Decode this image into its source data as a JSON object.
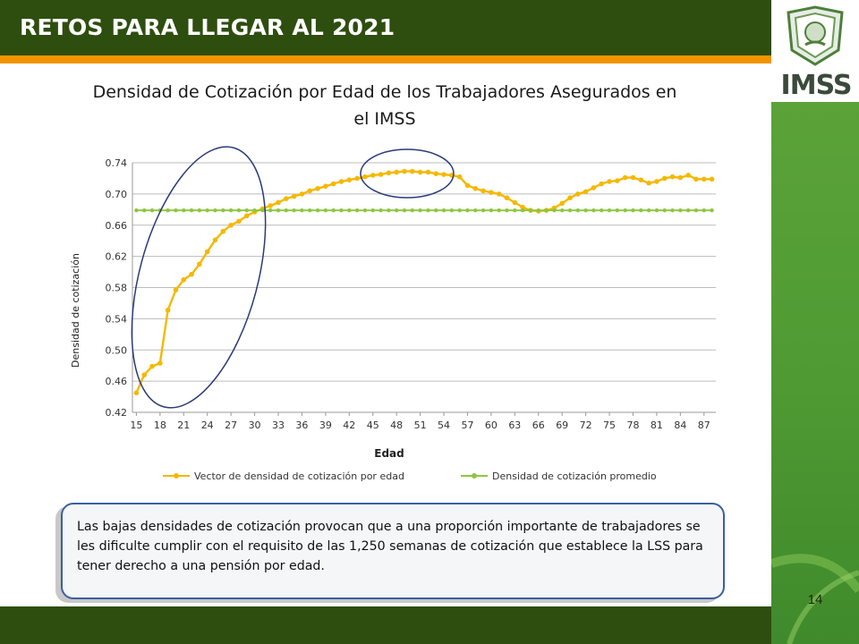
{
  "header": {
    "title": "RETOS PARA LLEGAR AL 2021"
  },
  "logo": {
    "text": "IMSS"
  },
  "page_number": "14",
  "colors": {
    "header_bg": "#2e4e0f",
    "accent_orange": "#f29400",
    "side_green": "#5fa63b",
    "series_orange": "#f5b800",
    "series_green": "#8dc63f",
    "ellipse": "#2b3a78"
  },
  "chart_data": {
    "type": "line",
    "title": "Densidad de Cotización por Edad de los Trabajadores Asegurados en el IMSS",
    "xlabel": "Edad",
    "ylabel": "Densidad de cotización",
    "ylim": [
      0.42,
      0.74
    ],
    "yticks": [
      "0.42",
      "0.46",
      "0.50",
      "0.54",
      "0.58",
      "0.62",
      "0.66",
      "0.70",
      "0.74"
    ],
    "xticks": [
      "15",
      "18",
      "21",
      "24",
      "27",
      "30",
      "33",
      "36",
      "39",
      "42",
      "45",
      "48",
      "51",
      "54",
      "57",
      "60",
      "63",
      "66",
      "69",
      "72",
      "75",
      "78",
      "81",
      "84",
      "87"
    ],
    "x": [
      15,
      16,
      17,
      18,
      19,
      20,
      21,
      22,
      23,
      24,
      25,
      26,
      27,
      28,
      29,
      30,
      31,
      32,
      33,
      34,
      35,
      36,
      37,
      38,
      39,
      40,
      41,
      42,
      43,
      44,
      45,
      46,
      47,
      48,
      49,
      50,
      51,
      52,
      53,
      54,
      55,
      56,
      57,
      58,
      59,
      60,
      61,
      62,
      63,
      64,
      65,
      66,
      67,
      68,
      69,
      70,
      71,
      72,
      73,
      74,
      75,
      76,
      77,
      78,
      79,
      80,
      81,
      82,
      83,
      84,
      85,
      86,
      87,
      88
    ],
    "grid": true,
    "legend_position": "bottom",
    "series": [
      {
        "name": "Vector de densidad de cotización por edad",
        "color": "#f5b800",
        "values": [
          0.445,
          0.468,
          0.479,
          0.483,
          0.551,
          0.577,
          0.59,
          0.597,
          0.61,
          0.626,
          0.641,
          0.652,
          0.66,
          0.665,
          0.672,
          0.677,
          0.681,
          0.685,
          0.689,
          0.694,
          0.697,
          0.7,
          0.704,
          0.707,
          0.71,
          0.713,
          0.716,
          0.718,
          0.72,
          0.722,
          0.724,
          0.725,
          0.727,
          0.728,
          0.729,
          0.729,
          0.728,
          0.728,
          0.726,
          0.725,
          0.724,
          0.722,
          0.711,
          0.707,
          0.704,
          0.702,
          0.7,
          0.695,
          0.689,
          0.683,
          0.679,
          0.678,
          0.679,
          0.682,
          0.688,
          0.695,
          0.7,
          0.703,
          0.708,
          0.713,
          0.716,
          0.717,
          0.721,
          0.721,
          0.718,
          0.714,
          0.716,
          0.72,
          0.722,
          0.721,
          0.724,
          0.719,
          0.719,
          0.719
        ]
      },
      {
        "name": "Densidad de cotización promedio",
        "color": "#8dc63f",
        "values": [
          0.679,
          0.679,
          0.679,
          0.679,
          0.679,
          0.679,
          0.679,
          0.679,
          0.679,
          0.679,
          0.679,
          0.679,
          0.679,
          0.679,
          0.679,
          0.679,
          0.679,
          0.679,
          0.679,
          0.679,
          0.679,
          0.679,
          0.679,
          0.679,
          0.679,
          0.679,
          0.679,
          0.679,
          0.679,
          0.679,
          0.679,
          0.679,
          0.679,
          0.679,
          0.679,
          0.679,
          0.679,
          0.679,
          0.679,
          0.679,
          0.679,
          0.679,
          0.679,
          0.679,
          0.679,
          0.679,
          0.679,
          0.679,
          0.679,
          0.679,
          0.679,
          0.679,
          0.679,
          0.679,
          0.679,
          0.679,
          0.679,
          0.679,
          0.679,
          0.679,
          0.679,
          0.679,
          0.679,
          0.679,
          0.679,
          0.679,
          0.679,
          0.679,
          0.679,
          0.679,
          0.679,
          0.679,
          0.679,
          0.679
        ]
      }
    ]
  },
  "note": {
    "text": "Las bajas densidades de cotización provocan que a una proporción importante de trabajadores se les dificulte cumplir con el requisito de las 1,250 semanas de cotización que establece la LSS para tener derecho a una pensión por edad."
  }
}
